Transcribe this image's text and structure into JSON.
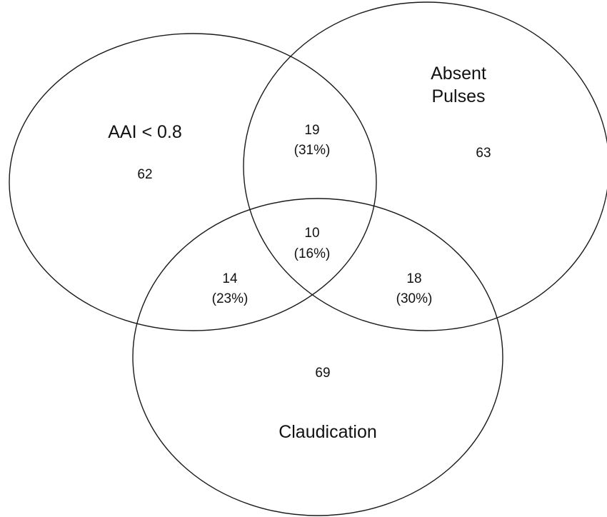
{
  "diagram": {
    "sets": {
      "aai": {
        "label": "AAI < 0.8"
      },
      "pulses": {
        "label_line1": "Absent",
        "label_line2": "Pulses"
      },
      "claudication": {
        "label": "Claudication"
      }
    },
    "regions": {
      "aai_only": {
        "count": "62"
      },
      "pulses_only": {
        "count": "63"
      },
      "claudication_only": {
        "count": "69"
      },
      "aai_pulses": {
        "count": "19",
        "percent": "(31%)"
      },
      "aai_claudication": {
        "count": "14",
        "percent": "(23%)"
      },
      "pulses_claudication": {
        "count": "18",
        "percent": "(30%)"
      },
      "all_three": {
        "count": "10",
        "percent": "(16%)"
      }
    }
  }
}
